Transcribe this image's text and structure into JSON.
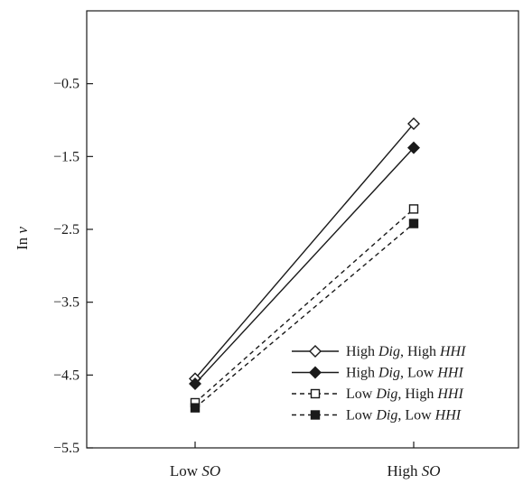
{
  "chart_data": {
    "type": "line",
    "ylabel": {
      "main": "Inv",
      "italic": "v"
    },
    "categories": [
      {
        "plain": "Low ",
        "italic": "SO"
      },
      {
        "plain": "High ",
        "italic": "SO"
      }
    ],
    "ylim": [
      -5.5,
      0.5
    ],
    "yticks": [
      -0.5,
      -1.5,
      -2.5,
      -3.5,
      -4.5,
      -5.5
    ],
    "ytick_labels": [
      "−0.5",
      "−1.5",
      "−2.5",
      "−3.5",
      "−4.5",
      "−5.5"
    ],
    "grid": false,
    "legend_position": "bottom-right",
    "series": [
      {
        "name": "High Dig, High HHI",
        "label_parts": [
          "High ",
          "Dig",
          ", High ",
          "HHI"
        ],
        "values": [
          -4.55,
          -1.05
        ],
        "line_style": "solid",
        "marker": "diamond-open",
        "color": "#1a1a1a"
      },
      {
        "name": "High Dig, Low HHI",
        "label_parts": [
          "High ",
          "Dig",
          ", Low ",
          "HHI"
        ],
        "values": [
          -4.62,
          -1.38
        ],
        "line_style": "solid",
        "marker": "diamond-filled",
        "color": "#1a1a1a"
      },
      {
        "name": "Low Dig, High HHI",
        "label_parts": [
          "Low ",
          "Dig",
          ", High ",
          "HHI"
        ],
        "values": [
          -4.88,
          -2.22
        ],
        "line_style": "dashed",
        "marker": "square-open",
        "color": "#1a1a1a"
      },
      {
        "name": "Low Dig, Low HHI",
        "label_parts": [
          "Low ",
          "Dig",
          ", Low ",
          "HHI"
        ],
        "values": [
          -4.95,
          -2.42
        ],
        "line_style": "dashed",
        "marker": "square-filled",
        "color": "#1a1a1a"
      }
    ]
  }
}
